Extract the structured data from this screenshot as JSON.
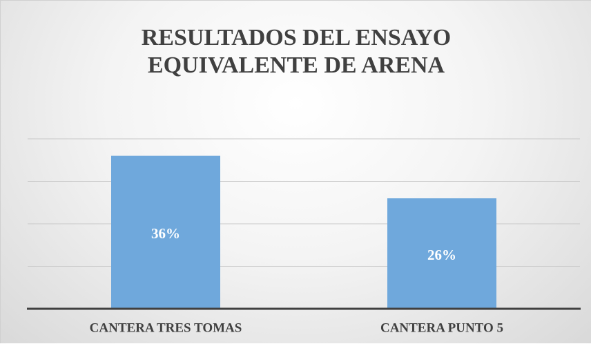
{
  "chart_data": {
    "type": "bar",
    "title": "RESULTADOS DEL ENSAYO EQUIVALENTE DE ARENA",
    "categories": [
      "CANTERA TRES TOMAS",
      "CANTERA PUNTO 5"
    ],
    "values": [
      36,
      26
    ],
    "value_labels": [
      "36%",
      "26%"
    ],
    "color": "#6fa8dc",
    "ylim": [
      0,
      40
    ],
    "yticks": [
      0,
      10,
      20,
      30,
      40
    ],
    "grid": true
  }
}
